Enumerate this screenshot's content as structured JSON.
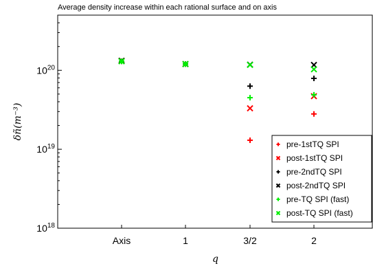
{
  "chart_data": {
    "type": "scatter",
    "title": "Average density increase within each rational surface and on axis",
    "xlabel": "q",
    "ylabel": "δñ(m⁻³)",
    "yscale": "log",
    "ylim": [
      1e+18,
      5e+20
    ],
    "yticks": [
      {
        "value": 1e+18,
        "base": "10",
        "exp": "18"
      },
      {
        "value": 1e+19,
        "base": "10",
        "exp": "19"
      },
      {
        "value": 1e+20,
        "base": "10",
        "exp": "20"
      }
    ],
    "categories": [
      "Axis",
      "1",
      "3/2",
      "2"
    ],
    "grid": false,
    "legend_position": "bottom-right",
    "series": [
      {
        "name": "pre-1stTQ SPI",
        "marker": "plus",
        "color": "#ff0000",
        "values": [
          1.3e+20,
          1.2e+20,
          1.3e+19,
          2.8e+19
        ]
      },
      {
        "name": "post-1stTQ SPI",
        "marker": "cross",
        "color": "#ff0000",
        "values": [
          1.32e+20,
          1.2e+20,
          3.3e+19,
          4.7e+19
        ]
      },
      {
        "name": "pre-2ndTQ SPI",
        "marker": "plus",
        "color": "#000000",
        "values": [
          1.3e+20,
          1.2e+20,
          6.3e+19,
          7.9e+19
        ]
      },
      {
        "name": "post-2ndTQ SPI",
        "marker": "cross",
        "color": "#000000",
        "values": [
          1.32e+20,
          1.2e+20,
          1.18e+20,
          1.17e+20
        ]
      },
      {
        "name": "pre-TQ SPI (fast)",
        "marker": "plus",
        "color": "#00ee00",
        "values": [
          1.3e+20,
          1.2e+20,
          4.5e+19,
          4.9e+19
        ]
      },
      {
        "name": "post-TQ SPI (fast)",
        "marker": "cross",
        "color": "#00ee00",
        "values": [
          1.3e+20,
          1.2e+20,
          1.17e+20,
          1.03e+20
        ]
      }
    ]
  }
}
